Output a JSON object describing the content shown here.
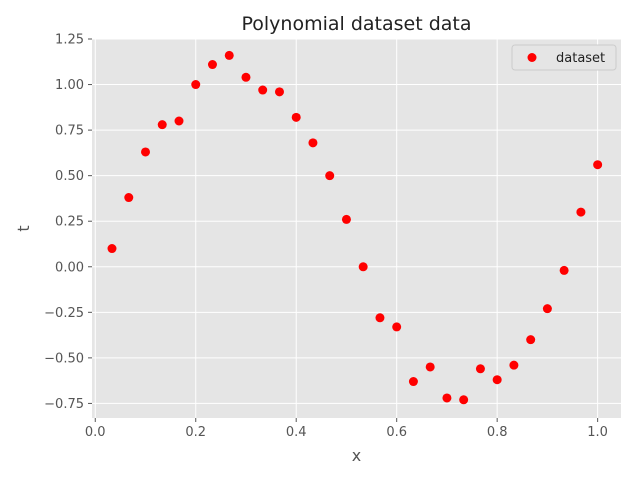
{
  "chart_data": {
    "type": "scatter",
    "title": "Polynomial dataset data",
    "xlabel": "x",
    "ylabel": "t",
    "xlim": [
      -0.0065,
      1.0465
    ],
    "ylim": [
      -0.83,
      1.25
    ],
    "x_ticks": [
      0.0,
      0.2,
      0.4,
      0.6,
      0.8,
      1.0
    ],
    "x_tick_labels": [
      "0.0",
      "0.2",
      "0.4",
      "0.6",
      "0.8",
      "1.0"
    ],
    "y_ticks": [
      -0.75,
      -0.5,
      -0.25,
      0.0,
      0.25,
      0.5,
      0.75,
      1.0,
      1.25
    ],
    "y_tick_labels": [
      "−0.75",
      "−0.50",
      "−0.25",
      "0.00",
      "0.25",
      "0.50",
      "0.75",
      "1.00",
      "1.25"
    ],
    "grid": true,
    "legend_position": "top-right",
    "series": [
      {
        "name": "dataset",
        "color": "#ff0000",
        "marker": "circle",
        "x": [
          0.0333,
          0.0667,
          0.1,
          0.1333,
          0.1667,
          0.2,
          0.2333,
          0.2667,
          0.3,
          0.3333,
          0.3667,
          0.4,
          0.4333,
          0.4667,
          0.5,
          0.5333,
          0.5667,
          0.6,
          0.6333,
          0.6667,
          0.7,
          0.7333,
          0.7667,
          0.8,
          0.8333,
          0.8667,
          0.9,
          0.9333,
          0.9667,
          1.0
        ],
        "y": [
          0.1,
          0.38,
          0.63,
          0.78,
          0.8,
          1.0,
          1.11,
          1.16,
          1.04,
          0.97,
          0.96,
          0.82,
          0.68,
          0.5,
          0.26,
          0.0,
          -0.28,
          -0.33,
          -0.63,
          -0.55,
          -0.72,
          -0.73,
          -0.56,
          -0.62,
          -0.54,
          -0.4,
          -0.23,
          -0.02,
          0.3,
          0.56
        ]
      }
    ]
  }
}
